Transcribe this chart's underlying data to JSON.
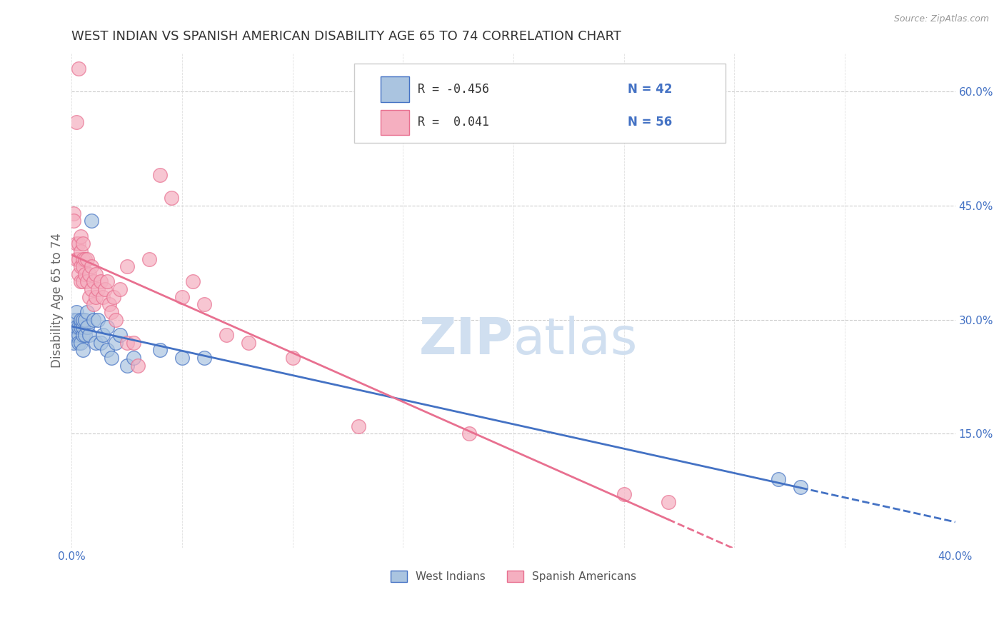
{
  "title": "WEST INDIAN VS SPANISH AMERICAN DISABILITY AGE 65 TO 74 CORRELATION CHART",
  "source": "Source: ZipAtlas.com",
  "ylabel": "Disability Age 65 to 74",
  "xlim": [
    0.0,
    0.4
  ],
  "ylim": [
    0.0,
    0.65
  ],
  "xticks": [
    0.0,
    0.05,
    0.1,
    0.15,
    0.2,
    0.25,
    0.3,
    0.35,
    0.4
  ],
  "yticks_right": [
    0.15,
    0.3,
    0.45,
    0.6
  ],
  "ytick_labels_right": [
    "15.0%",
    "30.0%",
    "45.0%",
    "60.0%"
  ],
  "xtick_labels": [
    "0.0%",
    "",
    "",
    "",
    "",
    "",
    "",
    "",
    "40.0%"
  ],
  "west_indian_color": "#aac4e0",
  "spanish_american_color": "#f5afc0",
  "west_indian_line_color": "#4472c4",
  "spanish_american_line_color": "#e87090",
  "r_west_indian": -0.456,
  "n_west_indian": 42,
  "r_spanish_american": 0.041,
  "n_spanish_american": 56,
  "west_indian_x": [
    0.001,
    0.001,
    0.001,
    0.001,
    0.002,
    0.002,
    0.002,
    0.002,
    0.002,
    0.003,
    0.003,
    0.003,
    0.004,
    0.004,
    0.004,
    0.005,
    0.005,
    0.005,
    0.005,
    0.006,
    0.006,
    0.007,
    0.007,
    0.008,
    0.009,
    0.01,
    0.011,
    0.012,
    0.013,
    0.014,
    0.016,
    0.016,
    0.018,
    0.02,
    0.022,
    0.025,
    0.028,
    0.04,
    0.05,
    0.06,
    0.32,
    0.33
  ],
  "west_indian_y": [
    0.29,
    0.3,
    0.27,
    0.28,
    0.29,
    0.3,
    0.28,
    0.29,
    0.31,
    0.28,
    0.27,
    0.29,
    0.27,
    0.29,
    0.3,
    0.26,
    0.28,
    0.29,
    0.3,
    0.28,
    0.3,
    0.29,
    0.31,
    0.28,
    0.43,
    0.3,
    0.27,
    0.3,
    0.27,
    0.28,
    0.26,
    0.29,
    0.25,
    0.27,
    0.28,
    0.24,
    0.25,
    0.26,
    0.25,
    0.25,
    0.09,
    0.08
  ],
  "spanish_american_x": [
    0.001,
    0.001,
    0.002,
    0.002,
    0.002,
    0.003,
    0.003,
    0.003,
    0.003,
    0.004,
    0.004,
    0.004,
    0.004,
    0.005,
    0.005,
    0.005,
    0.005,
    0.006,
    0.006,
    0.007,
    0.007,
    0.008,
    0.008,
    0.009,
    0.009,
    0.01,
    0.01,
    0.011,
    0.011,
    0.012,
    0.013,
    0.014,
    0.015,
    0.016,
    0.017,
    0.018,
    0.019,
    0.02,
    0.022,
    0.025,
    0.025,
    0.028,
    0.03,
    0.035,
    0.04,
    0.045,
    0.05,
    0.055,
    0.06,
    0.07,
    0.08,
    0.1,
    0.13,
    0.18,
    0.25,
    0.27
  ],
  "spanish_american_y": [
    0.44,
    0.43,
    0.38,
    0.4,
    0.56,
    0.36,
    0.38,
    0.4,
    0.63,
    0.37,
    0.39,
    0.41,
    0.35,
    0.38,
    0.4,
    0.35,
    0.37,
    0.38,
    0.36,
    0.35,
    0.38,
    0.33,
    0.36,
    0.34,
    0.37,
    0.32,
    0.35,
    0.33,
    0.36,
    0.34,
    0.35,
    0.33,
    0.34,
    0.35,
    0.32,
    0.31,
    0.33,
    0.3,
    0.34,
    0.27,
    0.37,
    0.27,
    0.24,
    0.38,
    0.49,
    0.46,
    0.33,
    0.35,
    0.32,
    0.28,
    0.27,
    0.25,
    0.16,
    0.15,
    0.07,
    0.06
  ],
  "background_color": "#ffffff",
  "grid_color": "#cccccc",
  "title_color": "#333333",
  "axis_label_color": "#666666",
  "tick_label_color": "#4472c4",
  "watermark_zip": "ZIP",
  "watermark_atlas": "atlas",
  "watermark_color": "#d0dff0",
  "legend_r_color": "#333333",
  "legend_n_color": "#4472c4"
}
